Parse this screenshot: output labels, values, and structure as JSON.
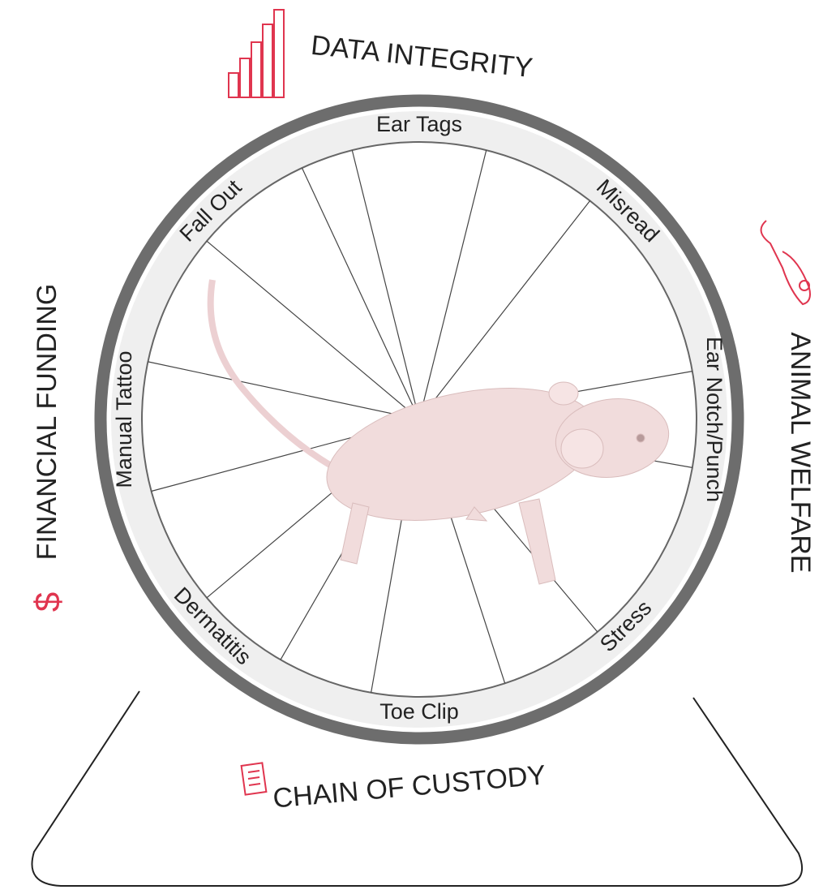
{
  "outer_labels": [
    "DATA INTEGRITY",
    "ANIMAL WELFARE",
    "CHAIN OF CUSTODY",
    "FINANCIAL FUNDING"
  ],
  "ring_labels": [
    "Ear Tags",
    "Misread",
    "Ear Notch/Punch",
    "Stress",
    "Toe Clip",
    "Dermatitis",
    "Manual Tattoo",
    "Fall Out"
  ]
}
